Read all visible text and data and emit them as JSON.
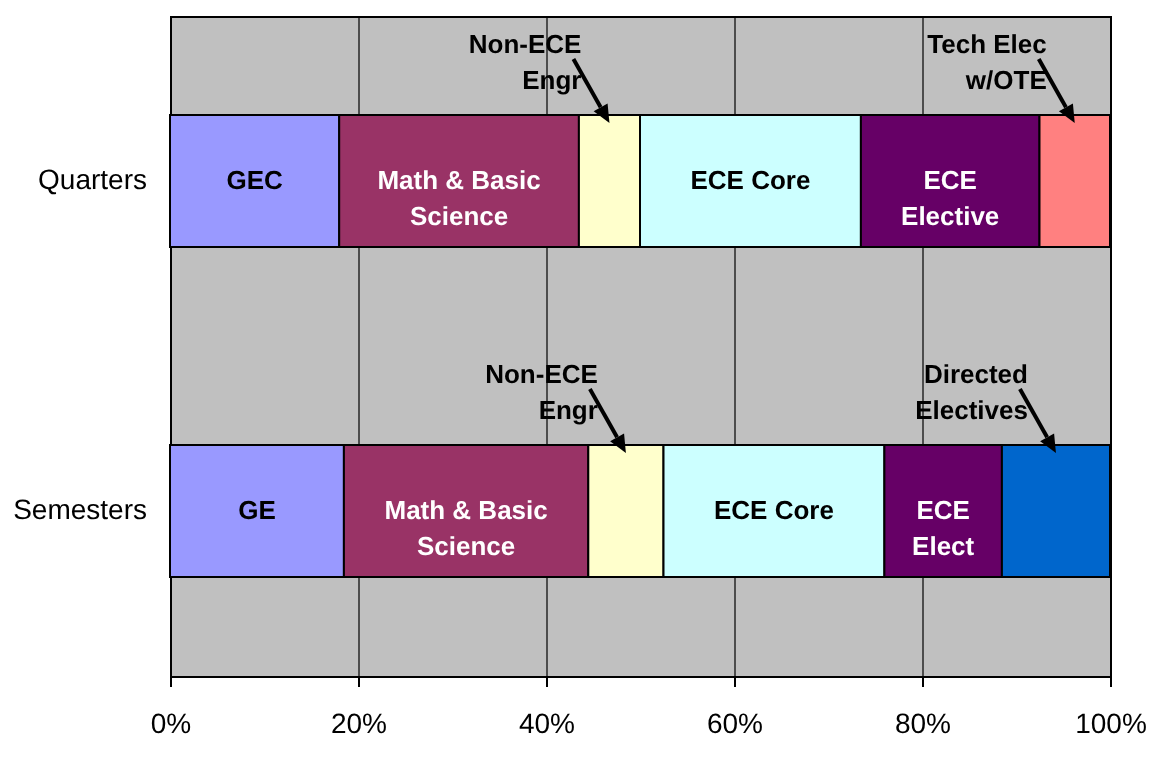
{
  "chart_data": {
    "type": "bar",
    "orientation": "horizontal",
    "stacked": true,
    "categories": [
      "Quarters",
      "Semesters"
    ],
    "series": [
      {
        "color": "#9999ff",
        "values": [
          18,
          18.5
        ],
        "value_labels": [
          "GEC",
          "GE"
        ]
      },
      {
        "color": "#993366",
        "values": [
          25.5,
          26
        ],
        "value_labels": [
          "Math & Basic\nScience",
          "Math & Basic\nScience"
        ]
      },
      {
        "color": "#ffffcc",
        "values": [
          6.5,
          8
        ],
        "value_labels": [
          "Non-ECE\nEngr",
          "Non-ECE\nEngr"
        ]
      },
      {
        "color": "#ccffff",
        "values": [
          23.5,
          23.5
        ],
        "value_labels": [
          "ECE Core",
          "ECE Core"
        ]
      },
      {
        "color": "#660066",
        "values": [
          19,
          12.5
        ],
        "value_labels": [
          "ECE\nElective",
          "ECE\nElect"
        ]
      },
      {
        "colors": [
          "#ff8080",
          "#0066cc"
        ],
        "values": [
          7.5,
          11.5
        ],
        "value_labels": [
          "Tech Elec\nw/OTE",
          "Directed\nElectives"
        ]
      }
    ],
    "xlim": [
      0,
      100
    ],
    "xticks": [
      {
        "value": 0,
        "label": "0%"
      },
      {
        "value": 20,
        "label": "20%"
      },
      {
        "value": 40,
        "label": "40%"
      },
      {
        "value": 60,
        "label": "60%"
      },
      {
        "value": 80,
        "label": "80%"
      },
      {
        "value": 100,
        "label": "100%"
      }
    ],
    "grid": "x"
  }
}
